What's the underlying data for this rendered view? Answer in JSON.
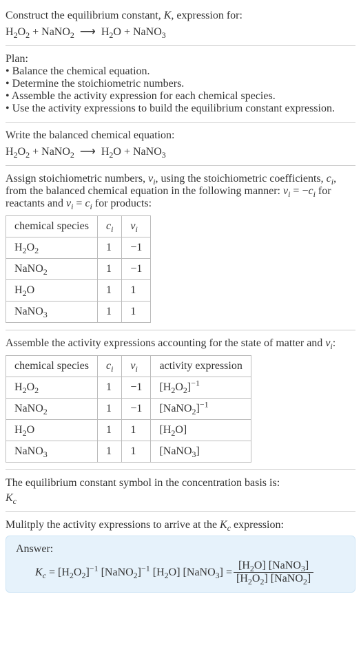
{
  "header": {
    "line1": "Construct the equilibrium constant, <span class=\"ital\">K</span>, expression for:",
    "equation": "H<sub>2</sub>O<sub>2</sub> + NaNO<sub>2</sub> &nbsp;&#10230;&nbsp; H<sub>2</sub>O + NaNO<sub>3</sub>"
  },
  "plan": {
    "title": "Plan:",
    "items": [
      "• Balance the chemical equation.",
      "• Determine the stoichiometric numbers.",
      "• Assemble the activity expression for each chemical species.",
      "• Use the activity expressions to build the equilibrium constant expression."
    ]
  },
  "balanced": {
    "title": "Write the balanced chemical equation:",
    "equation": "H<sub>2</sub>O<sub>2</sub> + NaNO<sub>2</sub> &nbsp;&#10230;&nbsp; H<sub>2</sub>O + NaNO<sub>3</sub>"
  },
  "stoich": {
    "text": "Assign stoichiometric numbers, <span class=\"ital\">ν<sub>i</sub></span>, using the stoichiometric coefficients, <span class=\"ital\">c<sub>i</sub></span>, from the balanced chemical equation in the following manner: <span class=\"ital\">ν<sub>i</sub></span> = −<span class=\"ital\">c<sub>i</sub></span> for reactants and <span class=\"ital\">ν<sub>i</sub></span> = <span class=\"ital\">c<sub>i</sub></span> for products:",
    "headers": [
      "chemical species",
      "<span class=\"ital\">c<sub>i</sub></span>",
      "<span class=\"ital\">ν<sub>i</sub></span>"
    ],
    "rows": [
      [
        "H<sub>2</sub>O<sub>2</sub>",
        "1",
        "−1"
      ],
      [
        "NaNO<sub>2</sub>",
        "1",
        "−1"
      ],
      [
        "H<sub>2</sub>O",
        "1",
        "1"
      ],
      [
        "NaNO<sub>3</sub>",
        "1",
        "1"
      ]
    ]
  },
  "activity": {
    "text": "Assemble the activity expressions accounting for the state of matter and <span class=\"ital\">ν<sub>i</sub></span>:",
    "headers": [
      "chemical species",
      "<span class=\"ital\">c<sub>i</sub></span>",
      "<span class=\"ital\">ν<sub>i</sub></span>",
      "activity expression"
    ],
    "rows": [
      [
        "H<sub>2</sub>O<sub>2</sub>",
        "1",
        "−1",
        "[H<sub>2</sub>O<sub>2</sub>]<sup>−1</sup>"
      ],
      [
        "NaNO<sub>2</sub>",
        "1",
        "−1",
        "[NaNO<sub>2</sub>]<sup>−1</sup>"
      ],
      [
        "H<sub>2</sub>O",
        "1",
        "1",
        "[H<sub>2</sub>O]"
      ],
      [
        "NaNO<sub>3</sub>",
        "1",
        "1",
        "[NaNO<sub>3</sub>]"
      ]
    ]
  },
  "symbol": {
    "text": "The equilibrium constant symbol in the concentration basis is:",
    "sym": "<span class=\"ital\">K<sub>c</sub></span>"
  },
  "multiply": {
    "text": "Mulitply the activity expressions to arrive at the <span class=\"ital\">K<sub>c</sub></span> expression:"
  },
  "answer": {
    "label": "Answer:",
    "lhs": "<span class=\"ital\">K<sub>c</sub></span> = [H<sub>2</sub>O<sub>2</sub>]<sup>−1</sup> [NaNO<sub>2</sub>]<sup>−1</sup> [H<sub>2</sub>O] [NaNO<sub>3</sub>] = ",
    "frac_top": "[H<sub>2</sub>O] [NaNO<sub>3</sub>]",
    "frac_bot": "[H<sub>2</sub>O<sub>2</sub>] [NaNO<sub>2</sub>]"
  },
  "colors": {
    "answer_bg": "#e6f2fb",
    "answer_border": "#cde4f5",
    "rule": "#cccccc",
    "table_border": "#bbbbbb",
    "text": "#333333"
  }
}
